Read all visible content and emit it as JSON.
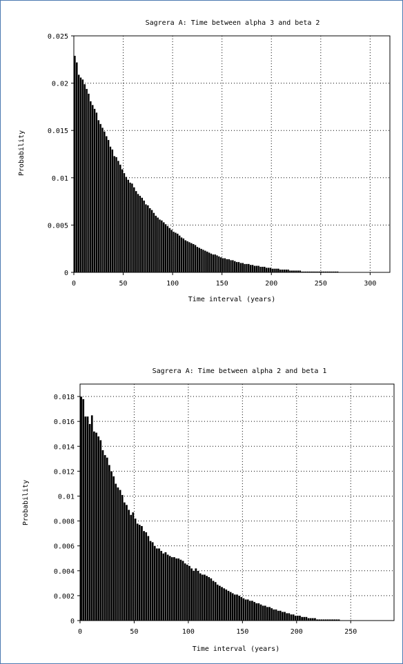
{
  "chart_data": [
    {
      "type": "bar",
      "title": "Sagrera A: Time between alpha 3 and beta 2",
      "xlabel": "Time interval (years)",
      "ylabel": "Probability",
      "xlim": [
        0,
        320
      ],
      "ylim": [
        0,
        0.025
      ],
      "xticks": [
        0,
        50,
        100,
        150,
        200,
        250,
        300
      ],
      "xtick_labels": [
        "0",
        "50",
        "100",
        "150",
        "200",
        "250",
        "300"
      ],
      "yticks": [
        0,
        0.005,
        0.01,
        0.015,
        0.02,
        0.025
      ],
      "ytick_labels": [
        "0",
        "0.005",
        "0.01",
        "0.015",
        "0.02",
        "0.025"
      ],
      "grid": true,
      "bin_width": 2,
      "values": [
        0.0229,
        0.0222,
        0.0209,
        0.0206,
        0.0204,
        0.0199,
        0.0194,
        0.0189,
        0.0181,
        0.0177,
        0.0173,
        0.0169,
        0.0161,
        0.0157,
        0.0153,
        0.0149,
        0.0144,
        0.014,
        0.0133,
        0.013,
        0.0123,
        0.0122,
        0.0118,
        0.0114,
        0.0109,
        0.0105,
        0.0101,
        0.0098,
        0.0095,
        0.0094,
        0.009,
        0.0086,
        0.0083,
        0.0081,
        0.0079,
        0.0076,
        0.0072,
        0.0071,
        0.0068,
        0.0066,
        0.0063,
        0.006,
        0.0058,
        0.0056,
        0.0055,
        0.0053,
        0.0051,
        0.0049,
        0.0047,
        0.0045,
        0.0043,
        0.0042,
        0.0041,
        0.0039,
        0.0037,
        0.0036,
        0.0034,
        0.0033,
        0.0032,
        0.0031,
        0.003,
        0.0029,
        0.0027,
        0.0026,
        0.0025,
        0.0024,
        0.0023,
        0.0022,
        0.0021,
        0.002,
        0.0019,
        0.0019,
        0.0018,
        0.0017,
        0.0016,
        0.0015,
        0.0015,
        0.0014,
        0.0014,
        0.0013,
        0.0013,
        0.0012,
        0.0011,
        0.0011,
        0.001,
        0.001,
        0.0009,
        0.0009,
        0.0009,
        0.0008,
        0.0008,
        0.0007,
        0.0007,
        0.0007,
        0.0006,
        0.0006,
        0.0006,
        0.0005,
        0.0005,
        0.0005,
        0.0004,
        0.0004,
        0.0004,
        0.0004,
        0.0003,
        0.0003,
        0.0003,
        0.0003,
        0.0003,
        0.0002,
        0.0002,
        0.0002,
        0.0002,
        0.0002,
        0.0002,
        0.0001,
        0.0001,
        0.0001,
        0.0001,
        0.0001,
        0.0001,
        0.0001,
        0.0001,
        0.0001,
        0.0001,
        0.0001,
        0.0001,
        0.0001,
        0.0001,
        0.0001,
        0.0001,
        0.0001,
        0.0001,
        0.0001
      ]
    },
    {
      "type": "bar",
      "title": "Sagrera A: Time between alpha 2 and beta 1",
      "xlabel": "Time interval (years)",
      "ylabel": "Probability",
      "xlim": [
        0,
        290
      ],
      "ylim": [
        0,
        0.019
      ],
      "xticks": [
        0,
        50,
        100,
        150,
        200,
        250
      ],
      "xtick_labels": [
        "0",
        "50",
        "100",
        "150",
        "200",
        "250"
      ],
      "yticks": [
        0,
        0.002,
        0.004,
        0.006,
        0.008,
        0.01,
        0.012,
        0.014,
        0.016,
        0.018
      ],
      "ytick_labels": [
        "0",
        "0.002",
        "0.004",
        "0.006",
        "0.008",
        "0.01",
        "0.012",
        "0.014",
        "0.016",
        "0.018"
      ],
      "grid": true,
      "bin_width": 2,
      "values": [
        0.018,
        0.0178,
        0.0164,
        0.0164,
        0.0158,
        0.0165,
        0.0152,
        0.0151,
        0.0148,
        0.0145,
        0.0137,
        0.0133,
        0.0131,
        0.0125,
        0.012,
        0.0116,
        0.011,
        0.0107,
        0.0105,
        0.0101,
        0.0095,
        0.0093,
        0.0089,
        0.0085,
        0.0087,
        0.0082,
        0.0078,
        0.0077,
        0.0076,
        0.0072,
        0.0071,
        0.0068,
        0.0064,
        0.0063,
        0.006,
        0.0058,
        0.0058,
        0.0056,
        0.0054,
        0.0055,
        0.0053,
        0.0052,
        0.0051,
        0.0051,
        0.005,
        0.005,
        0.0049,
        0.0048,
        0.0046,
        0.0045,
        0.0044,
        0.0042,
        0.004,
        0.0042,
        0.004,
        0.0038,
        0.0037,
        0.0037,
        0.0036,
        0.0035,
        0.0034,
        0.0032,
        0.0031,
        0.0029,
        0.0028,
        0.0027,
        0.0026,
        0.0025,
        0.0024,
        0.0023,
        0.0022,
        0.0021,
        0.0021,
        0.002,
        0.0019,
        0.0018,
        0.0017,
        0.0017,
        0.0016,
        0.0016,
        0.0015,
        0.0014,
        0.0014,
        0.0013,
        0.0012,
        0.0012,
        0.0011,
        0.0011,
        0.001,
        0.0009,
        0.0009,
        0.0008,
        0.0008,
        0.0007,
        0.0007,
        0.0006,
        0.0006,
        0.0005,
        0.0005,
        0.0004,
        0.0004,
        0.0004,
        0.0003,
        0.0003,
        0.0003,
        0.0002,
        0.0002,
        0.0002,
        0.0002,
        0.0001,
        0.0001,
        0.0001,
        0.0001,
        0.0001,
        0.0001,
        0.0001,
        0.0001,
        0.0001,
        0.0001,
        0.0001
      ]
    }
  ]
}
